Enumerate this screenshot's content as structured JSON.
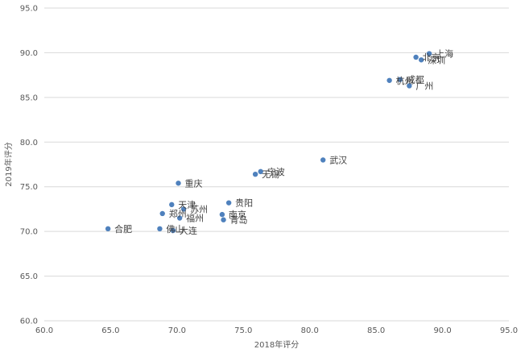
{
  "chart_data": {
    "type": "scatter",
    "title": "",
    "xlabel": "2018年评分",
    "ylabel": "2019年评分",
    "xlim": [
      60,
      95
    ],
    "ylim": [
      60,
      95
    ],
    "x_ticks": [
      "60.0",
      "65.0",
      "70.0",
      "75.0",
      "80.0",
      "85.0",
      "90.0",
      "95.0"
    ],
    "y_ticks": [
      "60.0",
      "65.0",
      "70.0",
      "75.0",
      "80.0",
      "85.0",
      "90.0",
      "95.0"
    ],
    "grid": "horizontal",
    "point_color": "#4f81bd",
    "points": [
      {
        "label": "上海",
        "x": 89.0,
        "y": 89.9
      },
      {
        "label": "北京",
        "x": 88.0,
        "y": 89.5
      },
      {
        "label": "深圳",
        "x": 88.4,
        "y": 89.2
      },
      {
        "label": "杭州",
        "x": 86.0,
        "y": 86.9
      },
      {
        "label": "成都",
        "x": 86.8,
        "y": 87.0
      },
      {
        "label": "广州",
        "x": 87.5,
        "y": 86.3
      },
      {
        "label": "武汉",
        "x": 81.0,
        "y": 78.0
      },
      {
        "label": "宁波",
        "x": 76.3,
        "y": 76.7
      },
      {
        "label": "无锡",
        "x": 75.9,
        "y": 76.4
      },
      {
        "label": "重庆",
        "x": 70.1,
        "y": 75.4
      },
      {
        "label": "贵阳",
        "x": 73.9,
        "y": 73.2
      },
      {
        "label": "天津",
        "x": 69.6,
        "y": 73.0
      },
      {
        "label": "苏州",
        "x": 70.5,
        "y": 72.5
      },
      {
        "label": "郑州",
        "x": 68.9,
        "y": 72.0
      },
      {
        "label": "福州",
        "x": 70.2,
        "y": 71.5
      },
      {
        "label": "南京",
        "x": 73.4,
        "y": 71.9
      },
      {
        "label": "青岛",
        "x": 73.5,
        "y": 71.3
      },
      {
        "label": "合肥",
        "x": 64.8,
        "y": 70.3
      },
      {
        "label": "佛山",
        "x": 68.7,
        "y": 70.3
      },
      {
        "label": "大连",
        "x": 69.7,
        "y": 70.1
      }
    ]
  }
}
